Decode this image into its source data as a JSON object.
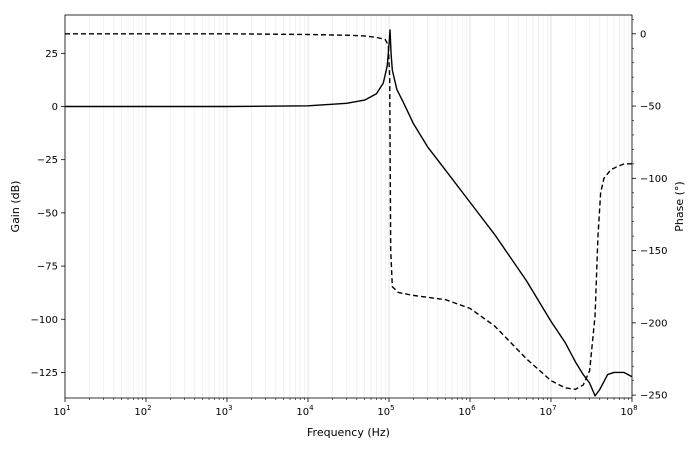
{
  "chart_data": {
    "type": "line",
    "title": "",
    "xlabel": "Frequency (Hz)",
    "ylabel_left": "Gain (dB)",
    "ylabel_right": "Phase (°)",
    "x_scale": "log",
    "xlim": [
      10,
      100000000
    ],
    "ylim_left": [
      -137,
      43
    ],
    "ylim_right": [
      -252,
      13
    ],
    "x_ticks": [
      {
        "base": "10",
        "exp": "1"
      },
      {
        "base": "10",
        "exp": "2"
      },
      {
        "base": "10",
        "exp": "3"
      },
      {
        "base": "10",
        "exp": "4"
      },
      {
        "base": "10",
        "exp": "5"
      },
      {
        "base": "10",
        "exp": "6"
      },
      {
        "base": "10",
        "exp": "7"
      },
      {
        "base": "10",
        "exp": "8"
      }
    ],
    "y_left_ticks": [
      "25",
      "0",
      "−25",
      "−50",
      "−75",
      "−100",
      "−125"
    ],
    "y_left_tick_values": [
      25,
      0,
      -25,
      -50,
      -75,
      -100,
      -125
    ],
    "y_right_ticks": [
      "0",
      "−50",
      "−100",
      "−150",
      "−200",
      "−250"
    ],
    "y_right_tick_values": [
      0,
      -50,
      -100,
      -150,
      -200,
      -250
    ],
    "grid": true,
    "series": [
      {
        "key": "gain",
        "axis": "left",
        "style": "solid",
        "x": [
          10,
          1000,
          10000,
          30000,
          50000,
          70000,
          85000,
          95000,
          100000,
          103000,
          106000,
          110000,
          125000,
          150000,
          200000,
          300000,
          500000,
          1000000,
          2000000,
          5000000,
          10000000,
          15000000,
          20000000,
          25000000,
          30000000,
          35000000,
          40000000,
          50000000,
          60000000,
          80000000,
          100000000
        ],
        "y": [
          0,
          0,
          0.3,
          1.5,
          3,
          6,
          11,
          19,
          29,
          36,
          25,
          17,
          8,
          2,
          -8,
          -19,
          -30,
          -45,
          -60,
          -82,
          -101,
          -111,
          -120,
          -126,
          -130,
          -136,
          -133,
          -126,
          -125,
          -125,
          -127
        ]
      },
      {
        "key": "phase",
        "axis": "right",
        "style": "dashed",
        "x": [
          10,
          1000,
          10000,
          30000,
          50000,
          70000,
          90000,
          98000,
          102000,
          105000,
          110000,
          130000,
          200000,
          500000,
          1000000,
          2000000,
          5000000,
          10000000,
          15000000,
          20000000,
          25000000,
          30000000,
          35000000,
          38000000,
          41000000,
          45000000,
          55000000,
          65000000,
          80000000,
          100000000
        ],
        "y": [
          0,
          0,
          -0.5,
          -1,
          -1.5,
          -2.5,
          -4,
          -8,
          -30,
          -150,
          -175,
          -179,
          -181,
          -184,
          -190,
          -202,
          -225,
          -240,
          -245,
          -246,
          -243,
          -233,
          -195,
          -140,
          -110,
          -100,
          -94,
          -92,
          -90,
          -90
        ]
      }
    ]
  }
}
